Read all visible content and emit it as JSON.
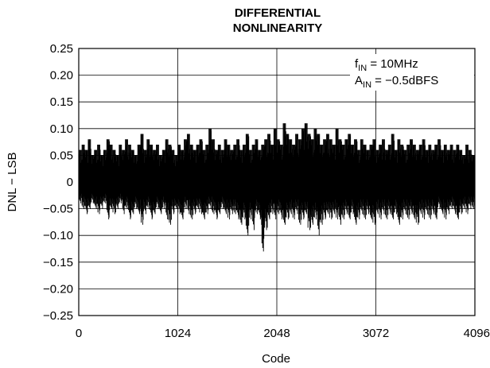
{
  "chart_data": {
    "type": "line",
    "title_lines": [
      "DIFFERENTIAL",
      "NONLINEARITY"
    ],
    "xlabel": "Code",
    "ylabel": "DNL − LSB",
    "xlim": [
      0,
      4096
    ],
    "ylim": [
      -0.25,
      0.25
    ],
    "x_ticks": [
      0,
      1024,
      2048,
      3072,
      4096
    ],
    "x_tick_labels": [
      "0",
      "1024",
      "2048",
      "3072",
      "4096"
    ],
    "y_ticks": [
      0.25,
      0.2,
      0.15,
      0.1,
      0.05,
      0,
      -0.05,
      -0.1,
      -0.15,
      -0.2,
      -0.25
    ],
    "y_tick_labels": [
      "0.25",
      "0.20",
      "0.15",
      "0.10",
      "0.05",
      "0",
      "−0.05",
      "−0.10",
      "−0.15",
      "−0.20",
      "−0.25"
    ],
    "grid": true,
    "line_color": "#000000",
    "annotations": [
      {
        "main": "f",
        "sub": "IN",
        "rest": " = 10MHz"
      },
      {
        "main": "A",
        "sub": "IN",
        "rest": " = −0.5dBFS"
      }
    ],
    "series": [
      {
        "x_start": 0,
        "x_step": 32,
        "max": [
          0.06,
          0.07,
          0.06,
          0.08,
          0.05,
          0.06,
          0.07,
          0.05,
          0.06,
          0.08,
          0.07,
          0.06,
          0.05,
          0.07,
          0.06,
          0.08,
          0.07,
          0.06,
          0.05,
          0.07,
          0.09,
          0.06,
          0.08,
          0.07,
          0.06,
          0.07,
          0.05,
          0.06,
          0.08,
          0.07,
          0.06,
          0.05,
          0.07,
          0.06,
          0.08,
          0.09,
          0.07,
          0.06,
          0.07,
          0.08,
          0.06,
          0.07,
          0.1,
          0.08,
          0.06,
          0.07,
          0.06,
          0.08,
          0.07,
          0.06,
          0.07,
          0.08,
          0.06,
          0.07,
          0.09,
          0.06,
          0.07,
          0.08,
          0.06,
          0.07,
          0.08,
          0.09,
          0.07,
          0.1,
          0.08,
          0.07,
          0.11,
          0.09,
          0.08,
          0.07,
          0.09,
          0.08,
          0.1,
          0.11,
          0.09,
          0.08,
          0.1,
          0.09,
          0.07,
          0.08,
          0.09,
          0.08,
          0.07,
          0.1,
          0.08,
          0.07,
          0.08,
          0.09,
          0.07,
          0.08,
          0.06,
          0.08,
          0.07,
          0.06,
          0.07,
          0.08,
          0.06,
          0.07,
          0.08,
          0.06,
          0.07,
          0.09,
          0.06,
          0.08,
          0.07,
          0.06,
          0.07,
          0.08,
          0.07,
          0.06,
          0.07,
          0.08,
          0.06,
          0.07,
          0.06,
          0.07,
          0.08,
          0.06,
          0.07,
          0.06,
          0.07,
          0.06,
          0.07,
          0.06,
          0.05,
          0.07,
          0.06,
          0.05
        ],
        "min": [
          -0.04,
          -0.05,
          -0.06,
          -0.05,
          -0.04,
          -0.05,
          -0.06,
          -0.05,
          -0.04,
          -0.07,
          -0.05,
          -0.06,
          -0.05,
          -0.04,
          -0.06,
          -0.05,
          -0.07,
          -0.06,
          -0.05,
          -0.06,
          -0.08,
          -0.06,
          -0.05,
          -0.07,
          -0.06,
          -0.05,
          -0.06,
          -0.05,
          -0.07,
          -0.08,
          -0.06,
          -0.05,
          -0.06,
          -0.07,
          -0.05,
          -0.06,
          -0.07,
          -0.06,
          -0.05,
          -0.06,
          -0.07,
          -0.06,
          -0.05,
          -0.06,
          -0.07,
          -0.06,
          -0.05,
          -0.06,
          -0.07,
          -0.06,
          -0.06,
          -0.07,
          -0.08,
          -0.07,
          -0.1,
          -0.07,
          -0.09,
          -0.06,
          -0.07,
          -0.13,
          -0.09,
          -0.07,
          -0.06,
          -0.07,
          -0.06,
          -0.07,
          -0.08,
          -0.07,
          -0.06,
          -0.07,
          -0.06,
          -0.08,
          -0.07,
          -0.06,
          -0.09,
          -0.08,
          -0.07,
          -0.1,
          -0.08,
          -0.07,
          -0.06,
          -0.07,
          -0.06,
          -0.07,
          -0.08,
          -0.07,
          -0.06,
          -0.07,
          -0.06,
          -0.08,
          -0.07,
          -0.06,
          -0.07,
          -0.06,
          -0.07,
          -0.08,
          -0.06,
          -0.07,
          -0.06,
          -0.07,
          -0.06,
          -0.07,
          -0.06,
          -0.08,
          -0.07,
          -0.06,
          -0.07,
          -0.06,
          -0.07,
          -0.08,
          -0.06,
          -0.07,
          -0.06,
          -0.07,
          -0.06,
          -0.07,
          -0.05,
          -0.06,
          -0.07,
          -0.06,
          -0.05,
          -0.06,
          -0.07,
          -0.06,
          -0.05,
          -0.06,
          -0.05,
          -0.05
        ]
      }
    ]
  }
}
